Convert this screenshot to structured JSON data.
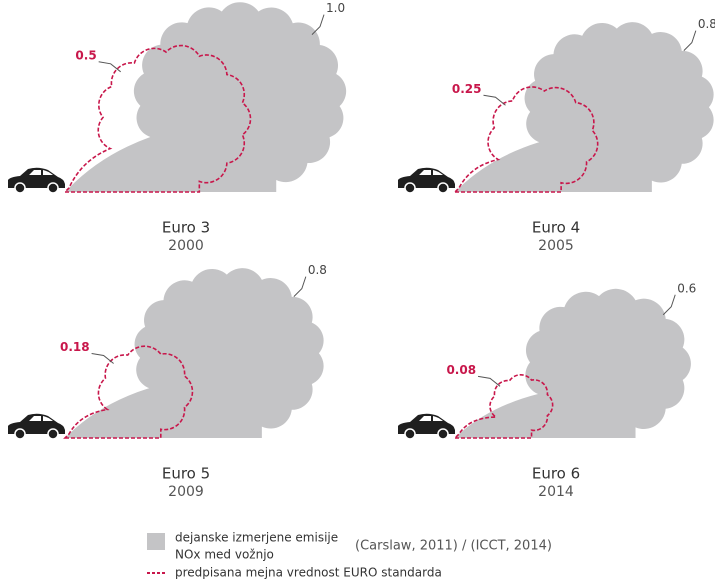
{
  "panels": [
    {
      "standard": "Euro 3",
      "year": "2000",
      "actual": "1.0",
      "limit": "0.5"
    },
    {
      "standard": "Euro 4",
      "year": "2005",
      "actual": "0.8",
      "limit": "0.25"
    },
    {
      "standard": "Euro 5",
      "year": "2009",
      "actual": "0.8",
      "limit": "0.18"
    },
    {
      "standard": "Euro 6",
      "year": "2014",
      "actual": "0.6",
      "limit": "0.08"
    }
  ],
  "legend": {
    "actual": [
      "dejanske izmerjene emisije",
      "NOx med vožnjo"
    ],
    "limit": "predpisana mejna vrednost EURO standarda"
  },
  "source": "(Carslaw, 2011) / (ICCT, 2014)"
}
